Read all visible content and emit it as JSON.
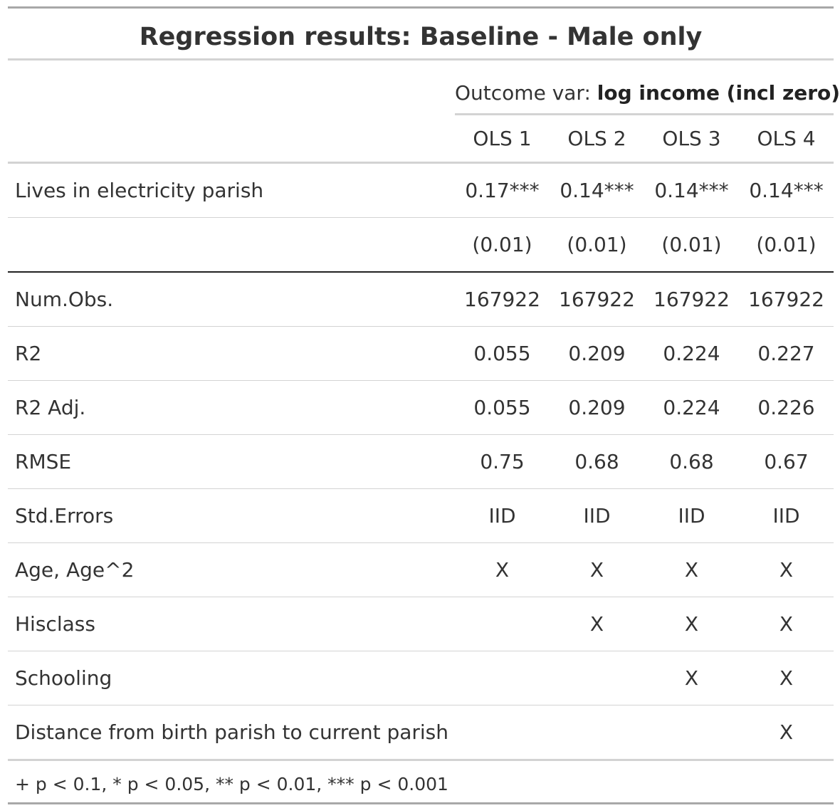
{
  "title": "Regression results: Baseline - Male only",
  "spanner": {
    "prefix": "Outcome var: ",
    "bold": "log income (incl zero)"
  },
  "columns": [
    "OLS 1",
    "OLS 2",
    "OLS 3",
    "OLS 4"
  ],
  "rows": [
    {
      "label": "Lives in electricity parish",
      "values": [
        "0.17***",
        "0.14***",
        "0.14***",
        "0.14***"
      ]
    },
    {
      "label": "",
      "values": [
        "(0.01)",
        "(0.01)",
        "(0.01)",
        "(0.01)"
      ]
    },
    {
      "label": "Num.Obs.",
      "values": [
        "167922",
        "167922",
        "167922",
        "167922"
      ]
    },
    {
      "label": "R2",
      "values": [
        "0.055",
        "0.209",
        "0.224",
        "0.227"
      ]
    },
    {
      "label": "R2 Adj.",
      "values": [
        "0.055",
        "0.209",
        "0.224",
        "0.226"
      ]
    },
    {
      "label": "RMSE",
      "values": [
        "0.75",
        "0.68",
        "0.68",
        "0.67"
      ]
    },
    {
      "label": "Std.Errors",
      "values": [
        "IID",
        "IID",
        "IID",
        "IID"
      ]
    },
    {
      "label": "Age, Age^2",
      "values": [
        "X",
        "X",
        "X",
        "X"
      ]
    },
    {
      "label": "Hisclass",
      "values": [
        "",
        "X",
        "X",
        "X"
      ]
    },
    {
      "label": "Schooling",
      "values": [
        "",
        "",
        "X",
        "X"
      ]
    },
    {
      "label": "Distance from birth parish to current parish",
      "values": [
        "",
        "",
        "",
        "X"
      ]
    }
  ],
  "footnote": "+ p < 0.1, * p < 0.05, ** p < 0.01, *** p < 0.001"
}
